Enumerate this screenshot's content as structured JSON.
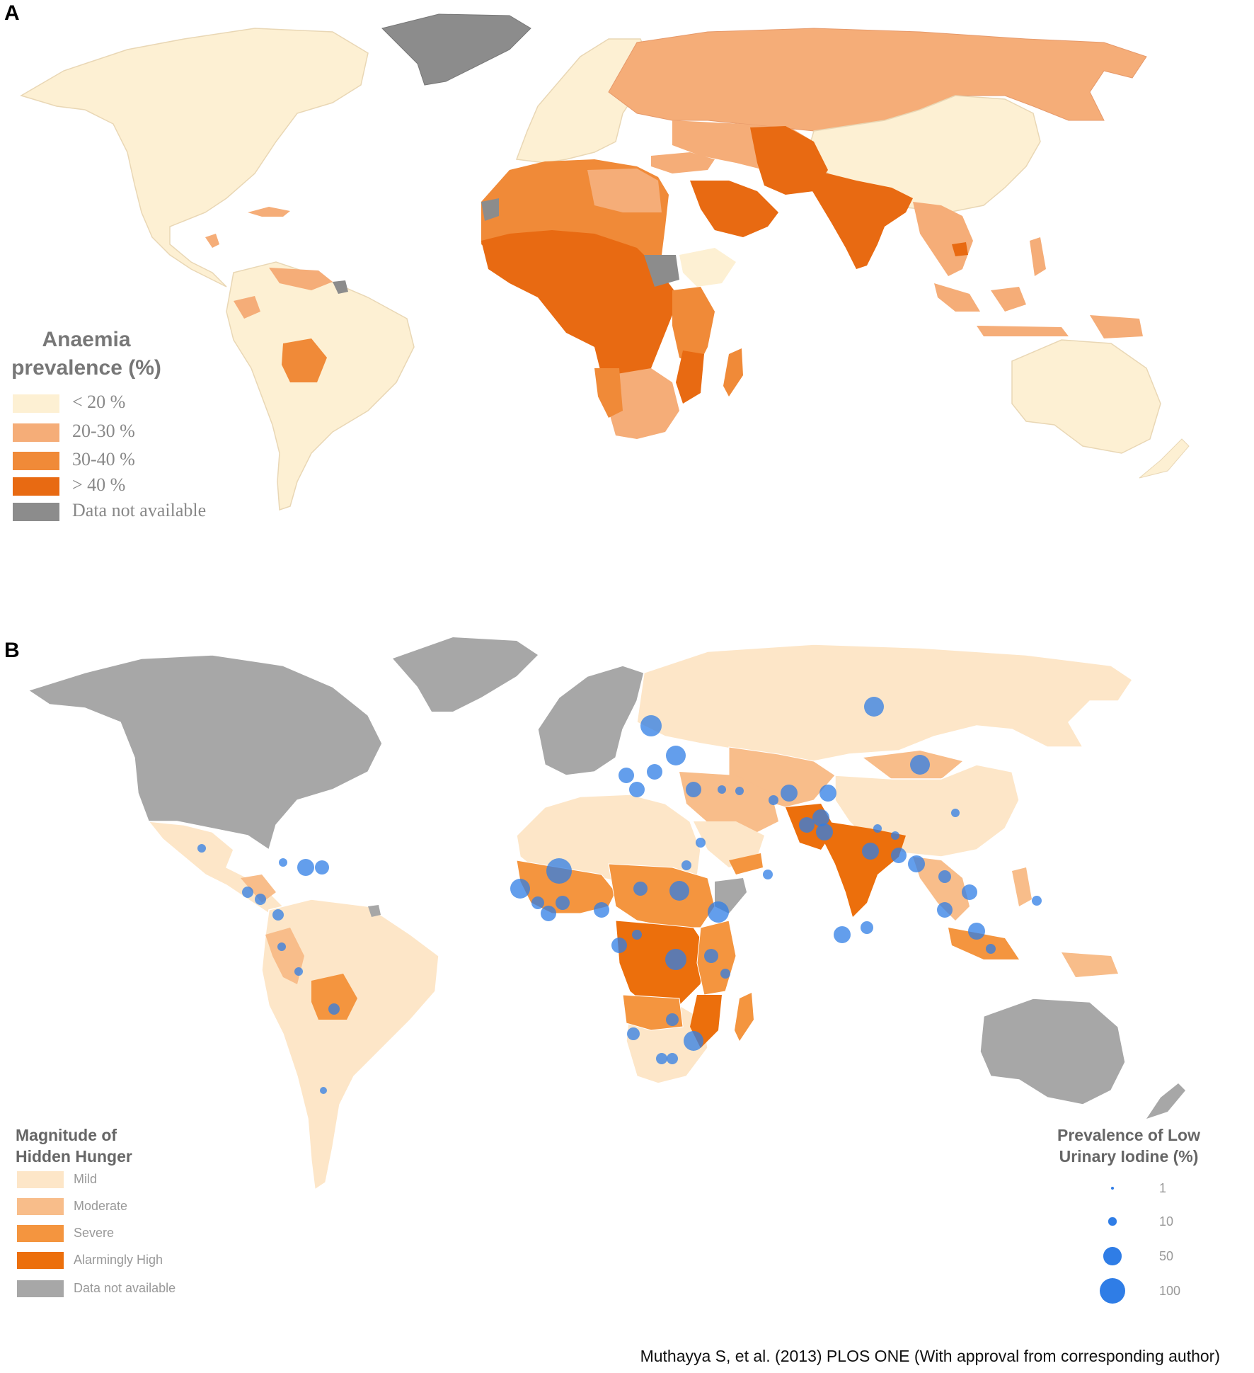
{
  "panel_a": {
    "label": "A",
    "legend": {
      "title_line1": "Anaemia",
      "title_line2": "prevalence (%)",
      "items": [
        {
          "label": "< 20 %",
          "color": "#fdf0d3"
        },
        {
          "label": "20-30 %",
          "color": "#f5ad78"
        },
        {
          "label": "30-40 %",
          "color": "#f08a38"
        },
        {
          "label": "> 40 %",
          "color": "#e86a12"
        },
        {
          "label": "Data not available",
          "color": "#8c8c8c"
        }
      ]
    }
  },
  "panel_b": {
    "label": "B",
    "legend": {
      "title_line1": "Magnitude of",
      "title_line2": "Hidden Hunger",
      "items": [
        {
          "label": "Mild",
          "color": "#fde6c8"
        },
        {
          "label": "Moderate",
          "color": "#f8bd8a"
        },
        {
          "label": "Severe",
          "color": "#f4953f"
        },
        {
          "label": "Alarmingly High",
          "color": "#ec6f0c"
        },
        {
          "label": "Data not available",
          "color": "#a7a7a7"
        }
      ]
    },
    "size_legend": {
      "title_line1": "Prevalence of Low",
      "title_line2": "Urinary Iodine (%)",
      "bubble_color": "#2f7de6",
      "items": [
        {
          "label": "1",
          "value": 1
        },
        {
          "label": "10",
          "value": 10
        },
        {
          "label": "50",
          "value": 50
        },
        {
          "label": "100",
          "value": 100
        }
      ]
    }
  },
  "citation": "Muthayya S, et al. (2013) PLOS ONE (With approval from corresponding author)"
}
